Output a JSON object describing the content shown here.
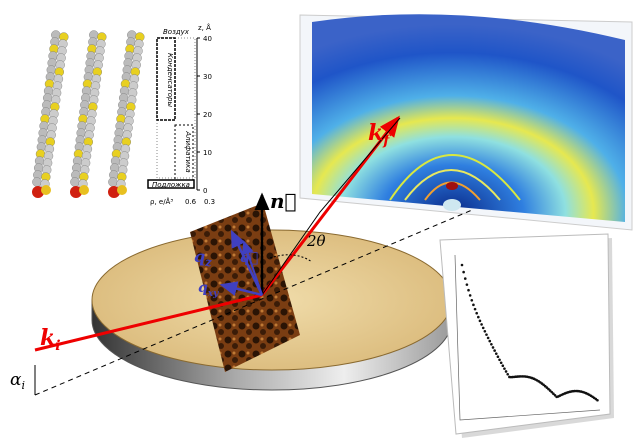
{
  "profile": {
    "z_axis_label": "z, Å",
    "z_ticks": [
      "40",
      "30",
      "20",
      "10",
      "0"
    ],
    "rho_axis_label": "ρ, e/Å³",
    "rho_ticks": [
      "0.6",
      "0.3"
    ],
    "layers": [
      "Воздух",
      "Конденсаторы",
      "Алифатика",
      "Подложка"
    ]
  },
  "labels": {
    "normal": "n⃗",
    "angle": "2θ",
    "qz": {
      "base": "q",
      "sub": "z"
    },
    "q": "q⃗",
    "qxy": {
      "base": "q",
      "sub": "xy"
    },
    "kf": {
      "base": "k",
      "sub": "f"
    },
    "ki": {
      "base": "k",
      "sub": "i"
    },
    "alpha": {
      "base": "α",
      "sub": "i"
    }
  }
}
